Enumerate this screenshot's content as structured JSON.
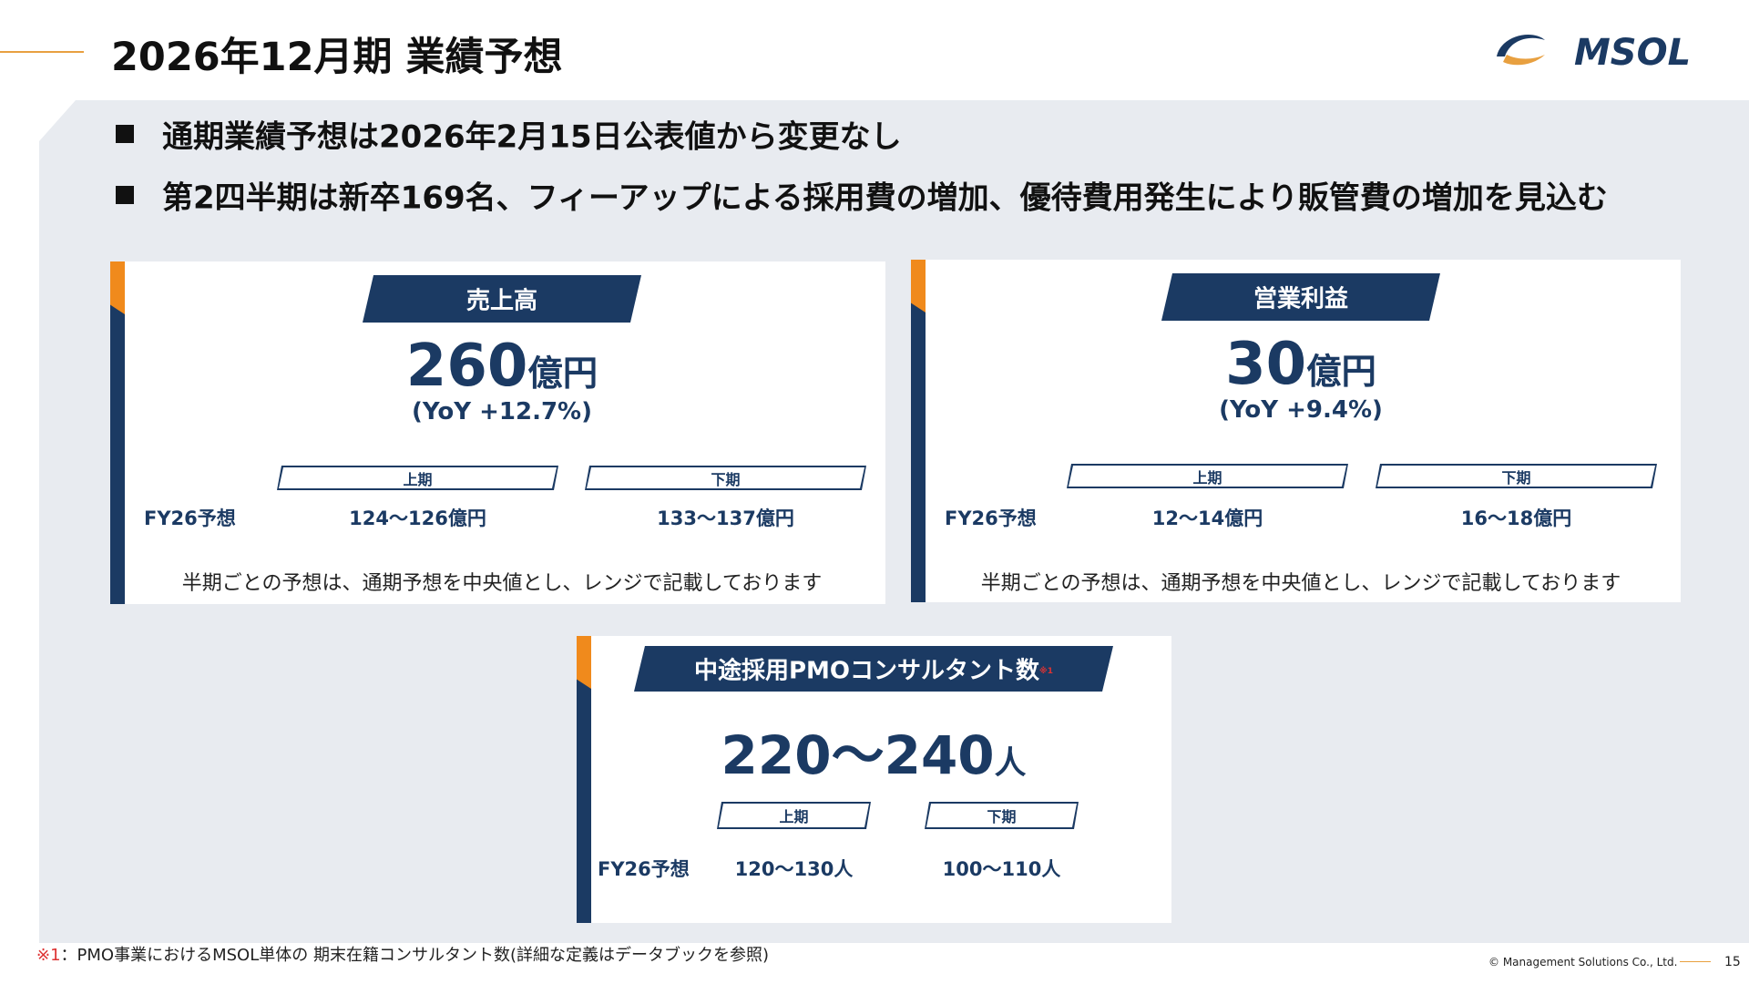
{
  "header": {
    "title": "2026年12月期 業績予想",
    "logo": "MSOL"
  },
  "bullets": [
    "通期業績予想は2026年2月15日公表値から変更なし",
    "第2四半期は新卒169名、フィーアップによる採用費の増加、優待費用発生により販管費の増加を見込む"
  ],
  "cards": [
    {
      "title": "売上高",
      "value": "260",
      "unit": "億円",
      "yoy": "(YoY +12.7%)",
      "half_labels": [
        "上期",
        "下期"
      ],
      "row_label": "FY26予想",
      "half_values": [
        "124〜126億円",
        "133〜137億円"
      ],
      "note": "半期ごとの予想は、通期予想を中央値とし、レンジで記載しております"
    },
    {
      "title": "営業利益",
      "value": "30",
      "unit": "億円",
      "yoy": "(YoY +9.4%)",
      "half_labels": [
        "上期",
        "下期"
      ],
      "row_label": "FY26予想",
      "half_values": [
        "12〜14億円",
        "16〜18億円"
      ],
      "note": "半期ごとの予想は、通期予想を中央値とし、レンジで記載しております"
    },
    {
      "title": "中途採用PMOコンサルタント数",
      "title_note": "※1",
      "value": "220〜240",
      "unit": "人",
      "half_labels": [
        "上期",
        "下期"
      ],
      "row_label": "FY26予想",
      "half_values": [
        "120〜130人",
        "100〜110人"
      ]
    }
  ],
  "footnote": {
    "marker": "※1",
    "text": "：PMO事業におけるMSOL単体の 期末在籍コンサルタント数(詳細な定義はデータブックを参照)"
  },
  "footer": {
    "copyright": "© Management Solutions Co., Ltd.",
    "page": "15"
  }
}
